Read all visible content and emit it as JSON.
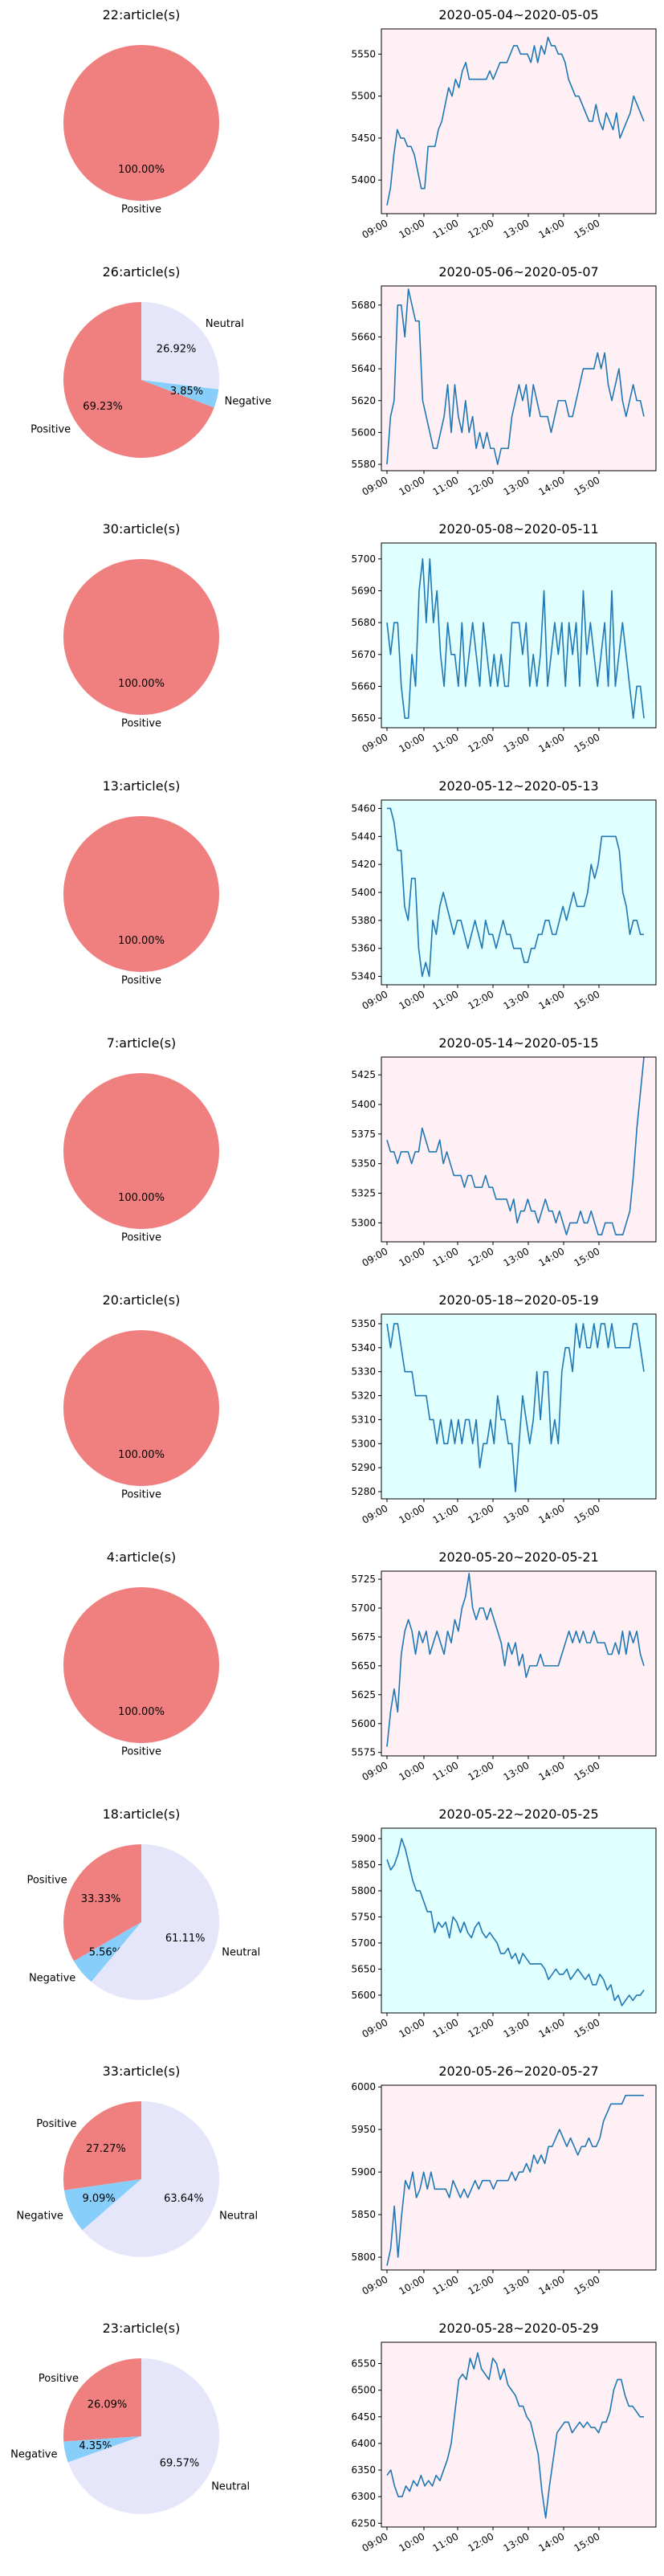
{
  "colors": {
    "positive": "#f08080",
    "negative": "#87cefa",
    "neutral": "#e6e6fa",
    "line": "#1f77b4",
    "bg_pink": "#fff0f5",
    "bg_cyan": "#e0ffff"
  },
  "chart_data": [
    {
      "pie": {
        "type": "pie",
        "title": "22:article(s)",
        "labels": [
          "Positive"
        ],
        "values": [
          100.0
        ],
        "autopct": [
          "100.00%"
        ]
      },
      "line": {
        "type": "line",
        "title": "2020-05-04~2020-05-05",
        "background": "bg_pink",
        "yticks": [
          5400,
          5450,
          5500,
          5550
        ],
        "ylim": [
          5360,
          5580
        ],
        "xticks": [
          "09:00",
          "10:00",
          "11:00",
          "12:00",
          "13:00",
          "14:00",
          "15:00"
        ],
        "values": [
          5370,
          5390,
          5430,
          5460,
          5450,
          5450,
          5440,
          5440,
          5430,
          5410,
          5390,
          5390,
          5440,
          5440,
          5440,
          5460,
          5470,
          5490,
          5510,
          5500,
          5520,
          5510,
          5530,
          5540,
          5520,
          5520,
          5520,
          5520,
          5520,
          5520,
          5530,
          5520,
          5530,
          5540,
          5540,
          5540,
          5550,
          5560,
          5560,
          5550,
          5550,
          5550,
          5540,
          5560,
          5540,
          5560,
          5550,
          5570,
          5560,
          5560,
          5550,
          5550,
          5540,
          5520,
          5510,
          5500,
          5500,
          5490,
          5480,
          5470,
          5470,
          5490,
          5470,
          5460,
          5480,
          5470,
          5460,
          5480,
          5450,
          5460,
          5470,
          5480,
          5500,
          5490,
          5480,
          5470
        ]
      }
    },
    {
      "pie": {
        "type": "pie",
        "title": "26:article(s)",
        "labels": [
          "Positive",
          "Negative",
          "Neutral"
        ],
        "values": [
          69.23,
          3.85,
          26.92
        ],
        "autopct": [
          "69.23%",
          "3.85%",
          "26.92%"
        ]
      },
      "line": {
        "type": "line",
        "title": "2020-05-06~2020-05-07",
        "background": "bg_pink",
        "yticks": [
          5580,
          5600,
          5620,
          5640,
          5660,
          5680
        ],
        "ylim": [
          5576,
          5692
        ],
        "xticks": [
          "09:00",
          "10:00",
          "11:00",
          "12:00",
          "13:00",
          "14:00",
          "15:00"
        ],
        "values": [
          5580,
          5610,
          5620,
          5680,
          5680,
          5660,
          5690,
          5680,
          5670,
          5670,
          5620,
          5610,
          5600,
          5590,
          5590,
          5600,
          5610,
          5630,
          5600,
          5630,
          5610,
          5600,
          5620,
          5600,
          5610,
          5590,
          5600,
          5590,
          5600,
          5590,
          5590,
          5580,
          5590,
          5590,
          5590,
          5610,
          5620,
          5630,
          5620,
          5630,
          5610,
          5630,
          5620,
          5610,
          5610,
          5610,
          5600,
          5610,
          5620,
          5620,
          5620,
          5610,
          5610,
          5620,
          5630,
          5640,
          5640,
          5640,
          5640,
          5650,
          5640,
          5650,
          5630,
          5620,
          5630,
          5640,
          5620,
          5610,
          5620,
          5630,
          5620,
          5620,
          5610
        ]
      }
    },
    {
      "pie": {
        "type": "pie",
        "title": "30:article(s)",
        "labels": [
          "Positive"
        ],
        "values": [
          100.0
        ],
        "autopct": [
          "100.00%"
        ]
      },
      "line": {
        "type": "line",
        "title": "2020-05-08~2020-05-11",
        "background": "bg_cyan",
        "yticks": [
          5650,
          5660,
          5670,
          5680,
          5690,
          5700
        ],
        "ylim": [
          5647,
          5705
        ],
        "xticks": [
          "09:00",
          "10:00",
          "11:00",
          "12:00",
          "13:00",
          "14:00",
          "15:00"
        ],
        "values": [
          5680,
          5670,
          5680,
          5680,
          5660,
          5650,
          5650,
          5670,
          5660,
          5690,
          5700,
          5680,
          5700,
          5680,
          5690,
          5670,
          5660,
          5680,
          5670,
          5670,
          5660,
          5680,
          5660,
          5670,
          5680,
          5670,
          5660,
          5680,
          5670,
          5660,
          5670,
          5660,
          5670,
          5660,
          5660,
          5680,
          5680,
          5680,
          5670,
          5680,
          5660,
          5670,
          5660,
          5670,
          5690,
          5660,
          5670,
          5680,
          5670,
          5680,
          5660,
          5680,
          5670,
          5680,
          5660,
          5690,
          5670,
          5680,
          5670,
          5660,
          5670,
          5680,
          5660,
          5690,
          5660,
          5670,
          5680,
          5670,
          5660,
          5650,
          5660,
          5660,
          5650
        ]
      }
    },
    {
      "pie": {
        "type": "pie",
        "title": "13:article(s)",
        "labels": [
          "Positive"
        ],
        "values": [
          100.0
        ],
        "autopct": [
          "100.00%"
        ]
      },
      "line": {
        "type": "line",
        "title": "2020-05-12~2020-05-13",
        "background": "bg_cyan",
        "yticks": [
          5340,
          5360,
          5380,
          5400,
          5420,
          5440,
          5460
        ],
        "ylim": [
          5334,
          5466
        ],
        "xticks": [
          "09:00",
          "10:00",
          "11:00",
          "12:00",
          "13:00",
          "14:00",
          "15:00"
        ],
        "values": [
          5460,
          5460,
          5450,
          5430,
          5430,
          5390,
          5380,
          5410,
          5410,
          5360,
          5340,
          5350,
          5340,
          5380,
          5370,
          5390,
          5400,
          5390,
          5380,
          5370,
          5380,
          5380,
          5370,
          5360,
          5370,
          5380,
          5370,
          5360,
          5380,
          5370,
          5370,
          5360,
          5370,
          5380,
          5370,
          5370,
          5360,
          5360,
          5360,
          5350,
          5350,
          5360,
          5360,
          5370,
          5370,
          5380,
          5380,
          5370,
          5370,
          5380,
          5390,
          5380,
          5390,
          5400,
          5390,
          5390,
          5390,
          5400,
          5420,
          5410,
          5420,
          5440,
          5440,
          5440,
          5440,
          5440,
          5430,
          5400,
          5390,
          5370,
          5380,
          5380,
          5370,
          5370
        ]
      }
    },
    {
      "pie": {
        "type": "pie",
        "title": "7:article(s)",
        "labels": [
          "Positive"
        ],
        "values": [
          100.0
        ],
        "autopct": [
          "100.00%"
        ]
      },
      "line": {
        "type": "line",
        "title": "2020-05-14~2020-05-15",
        "background": "bg_pink",
        "yticks": [
          5300,
          5325,
          5350,
          5375,
          5400,
          5425
        ],
        "ylim": [
          5284,
          5440
        ],
        "xticks": [
          "09:00",
          "10:00",
          "11:00",
          "12:00",
          "13:00",
          "14:00",
          "15:00"
        ],
        "values": [
          5370,
          5360,
          5360,
          5350,
          5360,
          5360,
          5360,
          5350,
          5360,
          5360,
          5380,
          5370,
          5360,
          5360,
          5360,
          5370,
          5350,
          5360,
          5350,
          5340,
          5340,
          5340,
          5330,
          5340,
          5340,
          5330,
          5330,
          5330,
          5340,
          5330,
          5330,
          5320,
          5320,
          5320,
          5320,
          5310,
          5320,
          5300,
          5310,
          5310,
          5320,
          5310,
          5310,
          5300,
          5310,
          5320,
          5310,
          5310,
          5300,
          5310,
          5300,
          5290,
          5300,
          5300,
          5300,
          5310,
          5300,
          5300,
          5310,
          5300,
          5290,
          5290,
          5300,
          5300,
          5300,
          5290,
          5290,
          5290,
          5300,
          5310,
          5340,
          5380,
          5410,
          5440
        ]
      }
    },
    {
      "pie": {
        "type": "pie",
        "title": "20:article(s)",
        "labels": [
          "Positive"
        ],
        "values": [
          100.0
        ],
        "autopct": [
          "100.00%"
        ]
      },
      "line": {
        "type": "line",
        "title": "2020-05-18~2020-05-19",
        "background": "bg_cyan",
        "yticks": [
          5280,
          5290,
          5300,
          5310,
          5320,
          5330,
          5340,
          5350
        ],
        "ylim": [
          5277,
          5354
        ],
        "xticks": [
          "09:00",
          "10:00",
          "11:00",
          "12:00",
          "13:00",
          "14:00",
          "15:00"
        ],
        "values": [
          5350,
          5340,
          5350,
          5350,
          5340,
          5330,
          5330,
          5330,
          5320,
          5320,
          5320,
          5320,
          5310,
          5310,
          5300,
          5310,
          5300,
          5300,
          5310,
          5300,
          5310,
          5300,
          5310,
          5310,
          5300,
          5310,
          5290,
          5300,
          5300,
          5310,
          5300,
          5320,
          5310,
          5310,
          5300,
          5300,
          5280,
          5300,
          5320,
          5310,
          5300,
          5310,
          5330,
          5310,
          5330,
          5330,
          5300,
          5310,
          5300,
          5330,
          5340,
          5340,
          5330,
          5350,
          5340,
          5350,
          5340,
          5340,
          5350,
          5340,
          5350,
          5350,
          5340,
          5350,
          5340,
          5340,
          5340,
          5340,
          5340,
          5350,
          5350,
          5340,
          5330
        ]
      }
    },
    {
      "pie": {
        "type": "pie",
        "title": "4:article(s)",
        "labels": [
          "Positive"
        ],
        "values": [
          100.0
        ],
        "autopct": [
          "100.00%"
        ]
      },
      "line": {
        "type": "line",
        "title": "2020-05-20~2020-05-21",
        "background": "bg_pink",
        "yticks": [
          5575,
          5600,
          5625,
          5650,
          5675,
          5700,
          5725
        ],
        "ylim": [
          5572,
          5732
        ],
        "xticks": [
          "09:00",
          "10:00",
          "11:00",
          "12:00",
          "13:00",
          "14:00",
          "15:00"
        ],
        "values": [
          5580,
          5610,
          5630,
          5610,
          5660,
          5680,
          5690,
          5680,
          5660,
          5680,
          5670,
          5680,
          5660,
          5670,
          5680,
          5670,
          5660,
          5680,
          5670,
          5690,
          5680,
          5700,
          5710,
          5730,
          5700,
          5690,
          5700,
          5700,
          5690,
          5700,
          5690,
          5680,
          5670,
          5650,
          5670,
          5660,
          5670,
          5650,
          5660,
          5640,
          5650,
          5650,
          5650,
          5660,
          5650,
          5650,
          5650,
          5650,
          5650,
          5660,
          5670,
          5680,
          5670,
          5680,
          5670,
          5680,
          5670,
          5670,
          5680,
          5670,
          5670,
          5670,
          5660,
          5660,
          5670,
          5660,
          5680,
          5660,
          5680,
          5670,
          5680,
          5660,
          5650
        ]
      }
    },
    {
      "pie": {
        "type": "pie",
        "title": "18:article(s)",
        "labels": [
          "Positive",
          "Negative",
          "Neutral"
        ],
        "values": [
          33.33,
          5.56,
          61.11
        ],
        "autopct": [
          "33.33%",
          "5.56%",
          "61.11%"
        ]
      },
      "line": {
        "type": "line",
        "title": "2020-05-22~2020-05-25",
        "background": "bg_cyan",
        "yticks": [
          5600,
          5650,
          5700,
          5750,
          5800,
          5850,
          5900
        ],
        "ylim": [
          5566,
          5920
        ],
        "xticks": [
          "09:00",
          "10:00",
          "11:00",
          "12:00",
          "13:00",
          "14:00",
          "15:00"
        ],
        "values": [
          5860,
          5840,
          5850,
          5870,
          5900,
          5880,
          5850,
          5820,
          5800,
          5800,
          5780,
          5760,
          5760,
          5720,
          5740,
          5730,
          5740,
          5710,
          5750,
          5740,
          5720,
          5740,
          5720,
          5710,
          5730,
          5740,
          5720,
          5710,
          5720,
          5710,
          5700,
          5680,
          5680,
          5690,
          5670,
          5680,
          5660,
          5680,
          5670,
          5660,
          5660,
          5660,
          5660,
          5650,
          5630,
          5640,
          5650,
          5640,
          5640,
          5650,
          5630,
          5640,
          5650,
          5640,
          5630,
          5640,
          5620,
          5620,
          5640,
          5630,
          5610,
          5620,
          5590,
          5600,
          5580,
          5590,
          5600,
          5590,
          5600,
          5600,
          5610
        ]
      }
    },
    {
      "pie": {
        "type": "pie",
        "title": "33:article(s)",
        "labels": [
          "Positive",
          "Negative",
          "Neutral"
        ],
        "values": [
          27.27,
          9.09,
          63.64
        ],
        "autopct": [
          "27.27%",
          "9.09%",
          "63.64%"
        ]
      },
      "line": {
        "type": "line",
        "title": "2020-05-26~2020-05-27",
        "background": "bg_pink",
        "yticks": [
          5800,
          5850,
          5900,
          5950,
          6000
        ],
        "ylim": [
          5785,
          6002
        ],
        "xticks": [
          "09:00",
          "10:00",
          "11:00",
          "12:00",
          "13:00",
          "14:00",
          "15:00"
        ],
        "values": [
          5790,
          5810,
          5860,
          5800,
          5850,
          5890,
          5880,
          5900,
          5870,
          5880,
          5900,
          5880,
          5900,
          5880,
          5880,
          5880,
          5880,
          5870,
          5890,
          5880,
          5870,
          5880,
          5870,
          5880,
          5890,
          5880,
          5890,
          5890,
          5890,
          5880,
          5890,
          5890,
          5890,
          5890,
          5900,
          5890,
          5900,
          5900,
          5910,
          5900,
          5920,
          5910,
          5920,
          5910,
          5930,
          5930,
          5940,
          5950,
          5940,
          5930,
          5940,
          5930,
          5920,
          5930,
          5930,
          5940,
          5930,
          5930,
          5940,
          5960,
          5970,
          5980,
          5980,
          5980,
          5980,
          5990,
          5990,
          5990,
          5990,
          5990,
          5990
        ]
      }
    },
    {
      "pie": {
        "type": "pie",
        "title": "23:article(s)",
        "labels": [
          "Positive",
          "Negative",
          "Neutral"
        ],
        "values": [
          26.09,
          4.35,
          69.57
        ],
        "autopct": [
          "26.09%",
          "4.35%",
          "69.57%"
        ]
      },
      "line": {
        "type": "line",
        "title": "2020-05-28~2020-05-29",
        "background": "bg_pink",
        "yticks": [
          6250,
          6300,
          6350,
          6400,
          6450,
          6500,
          6550
        ],
        "ylim": [
          6243,
          6590
        ],
        "xticks": [
          "09:00",
          "10:00",
          "11:00",
          "12:00",
          "13:00",
          "14:00",
          "15:00"
        ],
        "values": [
          6340,
          6350,
          6320,
          6300,
          6300,
          6320,
          6310,
          6330,
          6320,
          6340,
          6320,
          6330,
          6320,
          6340,
          6330,
          6350,
          6370,
          6400,
          6460,
          6520,
          6530,
          6520,
          6560,
          6540,
          6570,
          6540,
          6530,
          6520,
          6560,
          6550,
          6520,
          6540,
          6510,
          6500,
          6490,
          6470,
          6470,
          6450,
          6440,
          6410,
          6380,
          6310,
          6260,
          6320,
          6370,
          6420,
          6430,
          6440,
          6440,
          6420,
          6430,
          6440,
          6430,
          6440,
          6430,
          6430,
          6420,
          6440,
          6440,
          6460,
          6500,
          6520,
          6520,
          6490,
          6470,
          6470,
          6460,
          6450,
          6450
        ]
      }
    }
  ]
}
